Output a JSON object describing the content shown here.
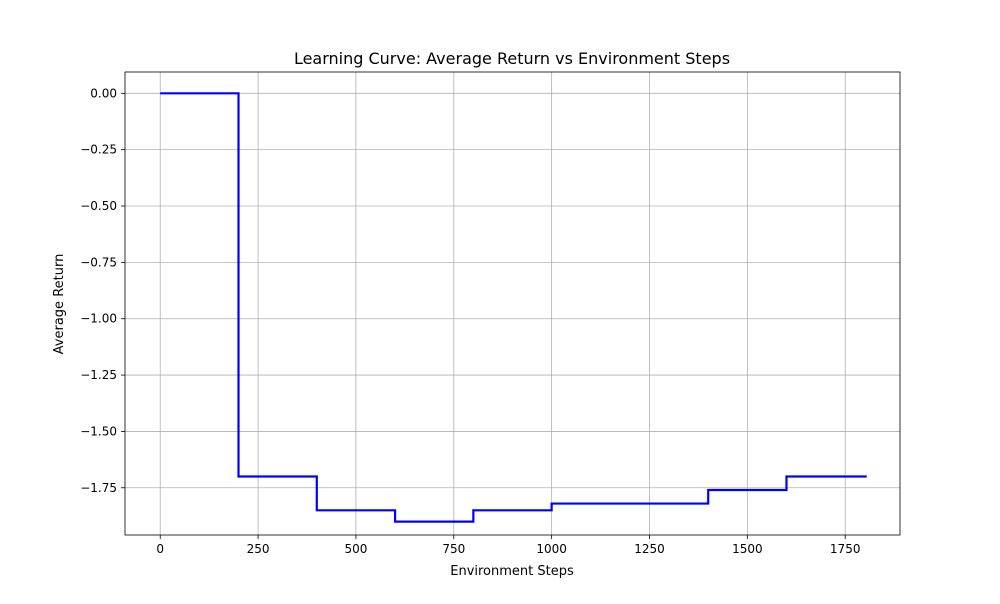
{
  "chart_data": {
    "type": "line",
    "title": "Learning Curve: Average Return vs Environment Steps",
    "xlabel": "Environment Steps",
    "ylabel": "Average Return",
    "xlim": [
      -90,
      1890
    ],
    "ylim": [
      -1.9595,
      0.0945
    ],
    "xticks": [
      0,
      250,
      500,
      750,
      1000,
      1250,
      1500,
      1750
    ],
    "yticks": [
      0.0,
      -0.25,
      -0.5,
      -0.75,
      -1.0,
      -1.25,
      -1.5,
      -1.75
    ],
    "xtick_labels": [
      "0",
      "250",
      "500",
      "750",
      "1000",
      "1250",
      "1500",
      "1750"
    ],
    "ytick_labels": [
      "0.00",
      "−0.25",
      "−0.50",
      "−0.75",
      "−1.00",
      "−1.25",
      "−1.50",
      "−1.75"
    ],
    "grid": true,
    "step": "post",
    "series": [
      {
        "color": "#0000ff",
        "x": [
          0,
          200,
          400,
          600,
          800,
          1000,
          1200,
          1400,
          1600,
          1800
        ],
        "y": [
          0.0,
          -1.7,
          -1.85,
          -1.9,
          -1.85,
          -1.82,
          -1.82,
          -1.76,
          -1.7,
          -1.7
        ]
      }
    ],
    "line_end_x": 1805
  }
}
